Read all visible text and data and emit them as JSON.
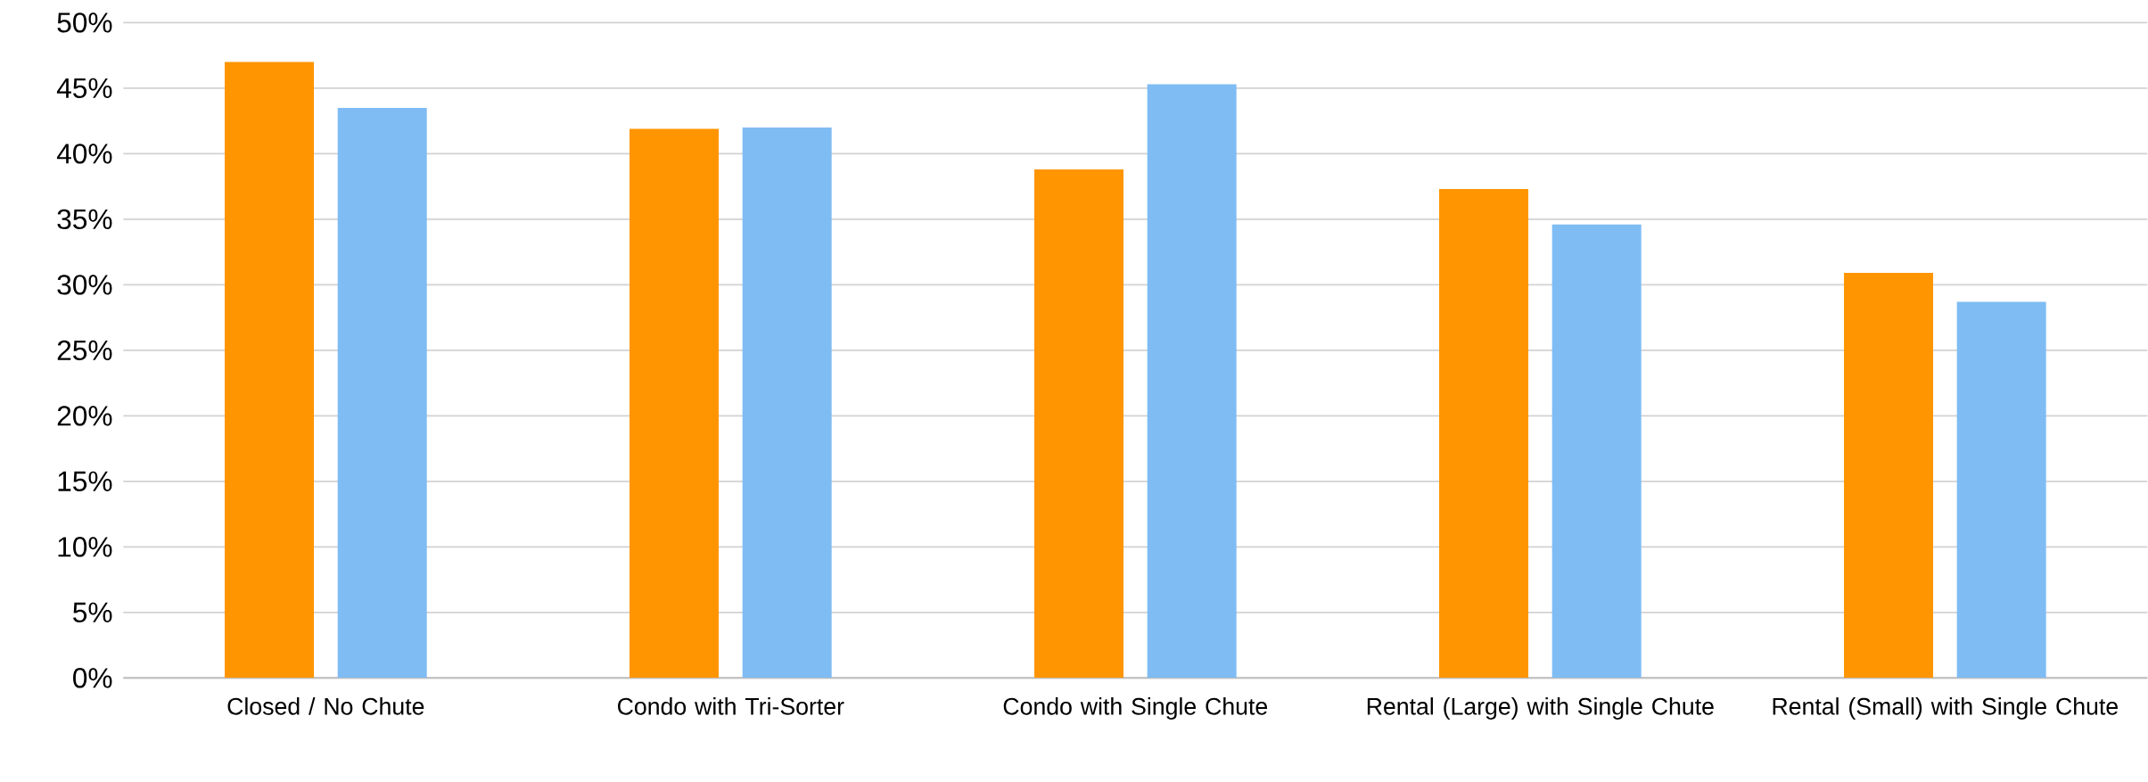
{
  "chart_data": {
    "type": "bar",
    "categories": [
      "Closed / No Chute",
      "Condo with Tri-Sorter",
      "Condo with Single Chute",
      "Rental (Large) with Single Chute",
      "Rental (Small) with Single Chute"
    ],
    "series": [
      {
        "color": "#ff9500",
        "values": [
          47.0,
          41.9,
          38.8,
          37.3,
          30.9
        ]
      },
      {
        "color": "#7fbcf3",
        "values": [
          43.5,
          42.0,
          45.3,
          34.6,
          28.7
        ]
      }
    ],
    "ylim": [
      0,
      50
    ],
    "yticks": [
      {
        "value": 0,
        "label": "0%"
      },
      {
        "value": 5,
        "label": "5%"
      },
      {
        "value": 10,
        "label": "10%"
      },
      {
        "value": 15,
        "label": "15%"
      },
      {
        "value": 20,
        "label": "20%"
      },
      {
        "value": 25,
        "label": "25%"
      },
      {
        "value": 30,
        "label": "30%"
      },
      {
        "value": 35,
        "label": "35%"
      },
      {
        "value": 40,
        "label": "40%"
      },
      {
        "value": 45,
        "label": "45%"
      },
      {
        "value": 50,
        "label": "50%"
      }
    ],
    "grid": "y"
  }
}
